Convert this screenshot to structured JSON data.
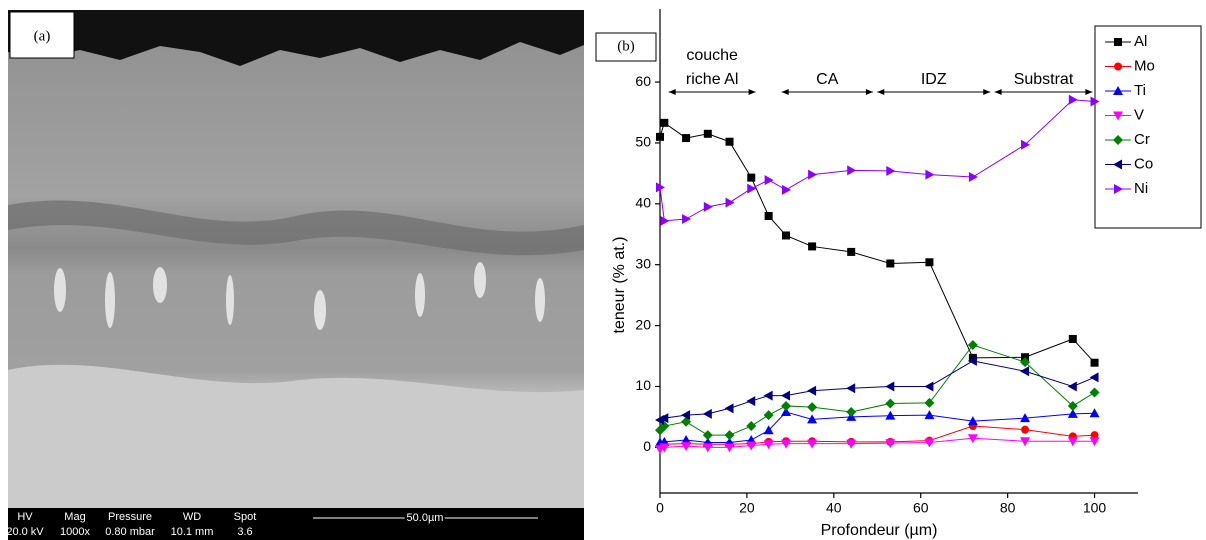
{
  "panel_a": {
    "label": "(a)",
    "info_headers": [
      "HV",
      "Mag",
      "Pressure",
      "WD",
      "Spot"
    ],
    "info_values": [
      "20.0 kV",
      "1000x",
      "0.80  mbar",
      "10.1 mm",
      "3.6"
    ],
    "scale_bar": "50.0µm"
  },
  "chart_data": {
    "type": "line",
    "panel_label": "(b)",
    "x_label": "Profondeur (µm)",
    "y_label": "teneur (% at.)",
    "xlim": [
      0,
      110
    ],
    "xticks": [
      0,
      20,
      40,
      60,
      80,
      100
    ],
    "ylim": [
      -7.5,
      72
    ],
    "yticks": [
      0,
      10,
      20,
      30,
      40,
      50,
      60
    ],
    "legend": "right",
    "regions": [
      {
        "label": [
          "couche",
          "riche Al"
        ],
        "from": 2,
        "to": 22
      },
      {
        "label": [
          "CA"
        ],
        "from": 28,
        "to": 49
      },
      {
        "label": [
          "IDZ"
        ],
        "from": 50,
        "to": 76
      },
      {
        "label": [
          "Substrat"
        ],
        "from": 77,
        "to": 99.5
      }
    ],
    "x": [
      0,
      1,
      6,
      11,
      16,
      21,
      25,
      29,
      35,
      44,
      53,
      62,
      72,
      84,
      95,
      100
    ],
    "series": [
      {
        "name": "Al",
        "color": "#000000",
        "marker": "square",
        "values": [
          51,
          53.3,
          50.8,
          51.5,
          50.2,
          44.3,
          38,
          34.8,
          33,
          32.1,
          30.2,
          30.4,
          14.7,
          14.8,
          17.8,
          13.9
        ]
      },
      {
        "name": "Mo",
        "color": "#ff0000",
        "marker": "circle",
        "values": [
          0.3,
          0.5,
          0.6,
          0.5,
          0.5,
          0.6,
          0.9,
          1.0,
          1.0,
          0.9,
          0.9,
          1.1,
          3.5,
          2.9,
          1.8,
          2.0
        ]
      },
      {
        "name": "Ti",
        "color": "#0000ff",
        "marker": "triangle-up",
        "values": [
          0.8,
          0.9,
          1.2,
          0.8,
          0.8,
          1.2,
          2.8,
          5.8,
          4.6,
          5.0,
          5.2,
          5.3,
          4.3,
          4.8,
          5.5,
          5.6
        ]
      },
      {
        "name": "V",
        "color": "#ff00ff",
        "marker": "triangle-down",
        "values": [
          -0.3,
          0,
          0.2,
          0,
          0,
          0.3,
          0.5,
          0.6,
          0.6,
          0.6,
          0.7,
          0.8,
          1.5,
          1.0,
          1.0,
          1.0
        ]
      },
      {
        "name": "Cr",
        "color": "#008000",
        "marker": "diamond",
        "values": [
          2.8,
          3.5,
          4.2,
          2.0,
          2.0,
          3.5,
          5.3,
          6.8,
          6.6,
          5.8,
          7.2,
          7.3,
          16.8,
          14,
          6.8,
          9
        ]
      },
      {
        "name": "Co",
        "color": "#000080",
        "marker": "triangle-left",
        "values": [
          4.5,
          4.8,
          5.3,
          5.5,
          6.4,
          7.6,
          8.5,
          8.5,
          9.3,
          9.7,
          10.0,
          10.0,
          14.2,
          12.5,
          10.0,
          11.5
        ]
      },
      {
        "name": "Ni",
        "color": "#8b00ff",
        "marker": "triangle-right",
        "values": [
          42.7,
          37.2,
          37.5,
          39.5,
          40.2,
          42.5,
          43.9,
          42.3,
          44.8,
          45.5,
          45.4,
          44.8,
          44.4,
          49.7,
          57.1,
          56.8
        ]
      }
    ]
  }
}
